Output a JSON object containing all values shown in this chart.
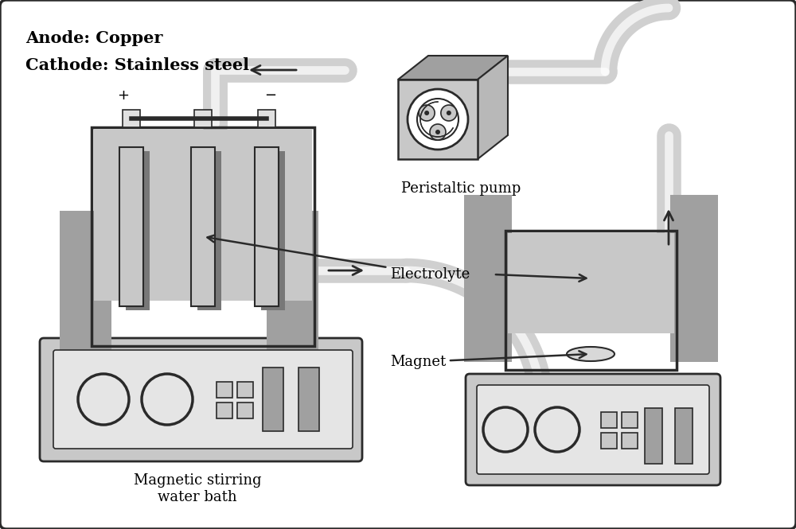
{
  "bg_color": "#ffffff",
  "border_color": "#2a2a2a",
  "gray_light": "#c8c8c8",
  "gray_mid": "#a0a0a0",
  "gray_dark": "#787878",
  "gray_tube": "#d0d0d0",
  "gray_fill": "#b8b8b8",
  "text_color": "#000000",
  "title_line1": "Anode: Copper",
  "title_line2": "Cathode: Stainless steel",
  "label_pump": "Peristaltic pump",
  "label_electrolyte": "Electrolyte",
  "label_magnet": "Magnet",
  "label_bath": "Magnetic stirring\nwater bath"
}
